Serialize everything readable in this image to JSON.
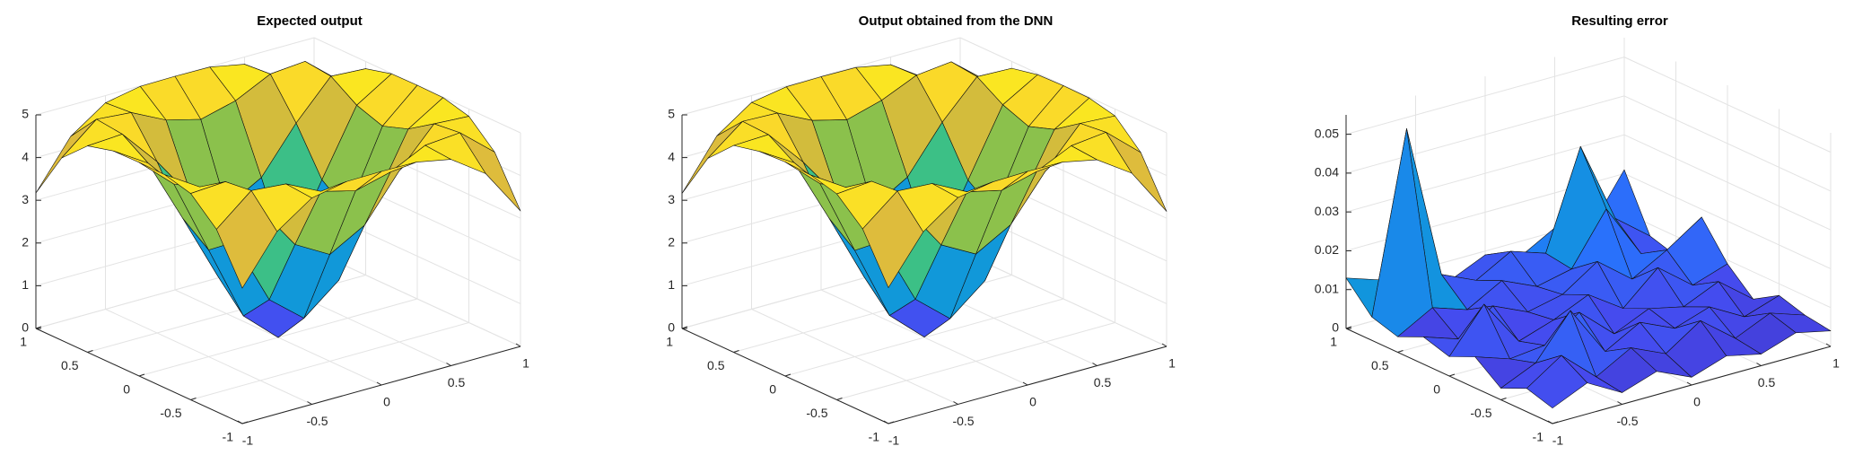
{
  "chart_data": [
    {
      "type": "surface",
      "title": "Expected output",
      "colormap": "parula",
      "x": [
        -1,
        -0.75,
        -0.5,
        -0.25,
        0,
        0.25,
        0.5,
        0.75,
        1
      ],
      "y": [
        -1,
        -0.75,
        -0.5,
        -0.25,
        0,
        0.25,
        0.5,
        0.75,
        1
      ],
      "z": [
        [
          3.17,
          4.27,
          4.83,
          4.99,
          5,
          4.99,
          4.83,
          4.27,
          3.17
        ],
        [
          4.27,
          4.95,
          4.88,
          4.48,
          4.27,
          4.48,
          4.88,
          4.95,
          4.27
        ],
        [
          4.83,
          4.88,
          4.01,
          2.96,
          2.5,
          2.96,
          4.01,
          4.88,
          4.83
        ],
        [
          4.99,
          4.48,
          2.96,
          1.39,
          0.73,
          1.39,
          2.96,
          4.48,
          4.99
        ],
        [
          5,
          4.27,
          2.5,
          0.73,
          0,
          0.73,
          2.5,
          4.27,
          5
        ],
        [
          4.99,
          4.48,
          2.96,
          1.39,
          0.73,
          1.39,
          2.96,
          4.48,
          4.99
        ],
        [
          4.83,
          4.88,
          4.01,
          2.96,
          2.5,
          2.96,
          4.01,
          4.88,
          4.83
        ],
        [
          4.27,
          4.95,
          4.88,
          4.48,
          4.27,
          4.48,
          4.88,
          4.95,
          4.27
        ],
        [
          3.17,
          4.27,
          4.83,
          4.99,
          5,
          4.99,
          4.83,
          4.27,
          3.17
        ]
      ],
      "xlim": [
        -1,
        1
      ],
      "ylim": [
        -1,
        1
      ],
      "zlim": [
        0,
        5
      ],
      "xticks": [
        -1,
        -0.5,
        0,
        0.5,
        1
      ],
      "yticks": [
        -1,
        -0.5,
        0,
        0.5,
        1
      ],
      "zticks": [
        0,
        1,
        2,
        3,
        4,
        5
      ],
      "grid": true
    },
    {
      "type": "surface",
      "title": "Output obtained from the DNN",
      "colormap": "parula",
      "x": [
        -1,
        -0.75,
        -0.5,
        -0.25,
        0,
        0.25,
        0.5,
        0.75,
        1
      ],
      "y": [
        -1,
        -0.75,
        -0.5,
        -0.25,
        0,
        0.25,
        0.5,
        0.75,
        1
      ],
      "z": [
        [
          3.18,
          4.26,
          4.84,
          4.98,
          5,
          4.99,
          4.82,
          4.28,
          3.16
        ],
        [
          4.28,
          4.94,
          4.89,
          4.47,
          4.28,
          4.49,
          4.87,
          4.96,
          4.26
        ],
        [
          4.82,
          4.89,
          4.02,
          2.95,
          2.51,
          2.97,
          4.0,
          4.89,
          4.84
        ],
        [
          4.98,
          4.47,
          2.97,
          1.4,
          0.72,
          1.38,
          2.97,
          4.47,
          4.98
        ],
        [
          5.01,
          4.28,
          2.49,
          0.74,
          0.01,
          0.74,
          2.51,
          4.26,
          4.99
        ],
        [
          4.98,
          4.49,
          2.97,
          1.38,
          0.74,
          1.39,
          2.95,
          4.49,
          4.97
        ],
        [
          4.84,
          4.87,
          4.0,
          2.97,
          2.49,
          2.97,
          4.03,
          4.87,
          4.84
        ],
        [
          4.26,
          4.9,
          4.87,
          4.47,
          4.26,
          4.49,
          4.85,
          4.94,
          4.28
        ],
        [
          3.16,
          4.28,
          4.84,
          4.98,
          4.99,
          4.98,
          4.82,
          4.28,
          3.19
        ]
      ],
      "xlim": [
        -1,
        1
      ],
      "ylim": [
        -1,
        1
      ],
      "zlim": [
        0,
        5
      ],
      "xticks": [
        -1,
        -0.5,
        0,
        0.5,
        1
      ],
      "yticks": [
        -1,
        -0.5,
        0,
        0.5,
        1
      ],
      "zticks": [
        0,
        1,
        2,
        3,
        4,
        5
      ],
      "grid": true
    },
    {
      "type": "surface",
      "title": "Resulting error",
      "colormap": "parula",
      "x": [
        -1,
        -0.75,
        -0.5,
        -0.25,
        0,
        0.25,
        0.5,
        0.75,
        1
      ],
      "y": [
        -1,
        -0.75,
        -0.5,
        -0.25,
        0,
        0.25,
        0.5,
        0.75,
        1
      ],
      "z": [
        [
          0.004,
          0.008,
          0.003,
          0.006,
          0.002,
          0.005,
          0.003,
          0.006,
          0.004
        ],
        [
          0.006,
          0.012,
          0.004,
          0.009,
          0.005,
          0.011,
          0.004,
          0.008,
          0.005
        ],
        [
          0.003,
          0.007,
          0.018,
          0.005,
          0.01,
          0.006,
          0.009,
          0.004,
          0.007
        ],
        [
          0.008,
          0.005,
          0.006,
          0.012,
          0.004,
          0.008,
          0.006,
          0.01,
          0.003
        ],
        [
          0.005,
          0.016,
          0.004,
          0.007,
          0.011,
          0.005,
          0.013,
          0.006,
          0.009
        ],
        [
          0.007,
          0.004,
          0.01,
          0.006,
          0.008,
          0.014,
          0.007,
          0.012,
          0.018
        ],
        [
          0.004,
          0.009,
          0.006,
          0.011,
          0.007,
          0.009,
          0.022,
          0.008,
          0.005
        ],
        [
          0.006,
          0.052,
          0.012,
          0.008,
          0.013,
          0.01,
          0.035,
          0.014,
          0.007
        ],
        [
          0.013,
          0.01,
          0.007,
          0.005,
          0.009,
          0.006,
          0.011,
          0.008,
          0.021
        ]
      ],
      "xlim": [
        -1,
        1
      ],
      "ylim": [
        -1,
        1
      ],
      "zlim": [
        0,
        0.055
      ],
      "xticks": [
        -1,
        -0.5,
        0,
        0.5,
        1
      ],
      "yticks": [
        -1,
        -0.5,
        0,
        0.5,
        1
      ],
      "zticks": [
        0,
        0.01,
        0.02,
        0.03,
        0.04,
        0.05
      ],
      "grid": true
    }
  ]
}
